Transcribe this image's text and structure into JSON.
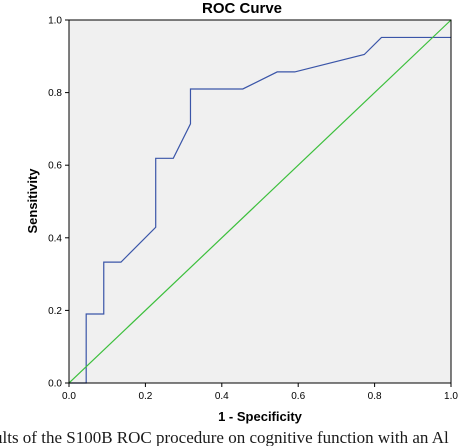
{
  "caption": "ults of the S100B ROC procedure on cognitive function with an Al",
  "chart_data": {
    "type": "line",
    "title": "ROC Curve",
    "xlabel": "1 - Specificity",
    "ylabel": "Sensitivity",
    "xlim": [
      0,
      1
    ],
    "ylim": [
      0,
      1
    ],
    "x_ticks": [
      0.0,
      0.2,
      0.4,
      0.6,
      0.8,
      1.0
    ],
    "y_ticks": [
      0.0,
      0.2,
      0.4,
      0.6,
      0.8,
      1.0
    ],
    "tick_labels": {
      "x": [
        "0.0",
        "0.2",
        "0.4",
        "0.6",
        "0.8",
        "1.0"
      ],
      "y": [
        "0.0",
        "0.2",
        "0.4",
        "0.6",
        "0.8",
        "1.0"
      ]
    },
    "grid": false,
    "plot_background": "#f0f0f0",
    "series": [
      {
        "color": "#3a55a8",
        "x": [
          0.0,
          0.045,
          0.045,
          0.091,
          0.091,
          0.136,
          0.227,
          0.227,
          0.273,
          0.318,
          0.318,
          0.455,
          0.545,
          0.591,
          0.773,
          0.818,
          1.0
        ],
        "y": [
          0.0,
          0.0,
          0.19,
          0.19,
          0.333,
          0.333,
          0.429,
          0.619,
          0.619,
          0.714,
          0.81,
          0.81,
          0.857,
          0.857,
          0.905,
          0.952,
          0.952
        ]
      },
      {
        "color": "#3cbf3c",
        "x": [
          0.0,
          1.0
        ],
        "y": [
          0.0,
          1.0
        ]
      }
    ]
  }
}
